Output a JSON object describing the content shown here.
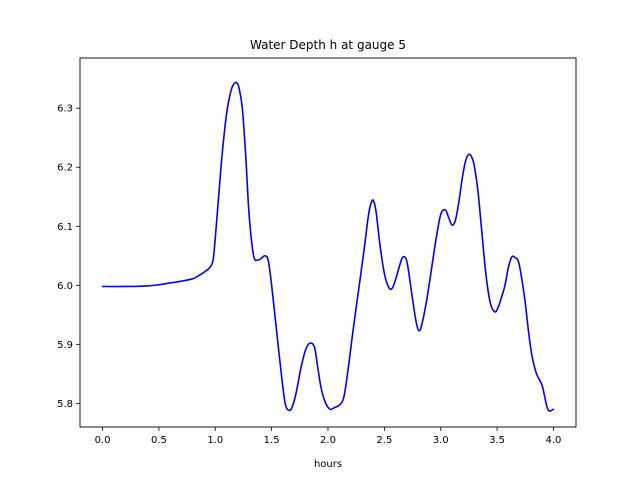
{
  "chart_data": {
    "type": "line",
    "title": "Water Depth h at gauge 5",
    "xlabel": "hours",
    "ylabel": "",
    "xlim": [
      -0.2,
      4.2
    ],
    "ylim": [
      5.76,
      6.385
    ],
    "xticks": [
      0.0,
      0.5,
      1.0,
      1.5,
      2.0,
      2.5,
      3.0,
      3.5,
      4.0
    ],
    "xtick_labels": [
      "0.0",
      "0.5",
      "1.0",
      "1.5",
      "2.0",
      "2.5",
      "3.0",
      "3.5",
      "4.0"
    ],
    "yticks": [
      5.8,
      5.9,
      6.0,
      6.1,
      6.2,
      6.3
    ],
    "ytick_labels": [
      "5.8",
      "5.9",
      "6.0",
      "6.1",
      "6.2",
      "6.3"
    ],
    "grid": false,
    "series": [
      {
        "color": "#0000ff",
        "x": [
          0.0,
          0.2,
          0.4,
          0.5,
          0.6,
          0.7,
          0.8,
          0.85,
          0.9,
          0.95,
          0.98,
          1.0,
          1.03,
          1.06,
          1.1,
          1.14,
          1.17,
          1.19,
          1.21,
          1.24,
          1.27,
          1.3,
          1.34,
          1.38,
          1.41,
          1.44,
          1.47,
          1.5,
          1.54,
          1.58,
          1.62,
          1.66,
          1.69,
          1.72,
          1.76,
          1.8,
          1.84,
          1.88,
          1.91,
          1.94,
          1.98,
          2.02,
          2.06,
          2.1,
          2.14,
          2.18,
          2.22,
          2.27,
          2.32,
          2.36,
          2.39,
          2.41,
          2.43,
          2.46,
          2.5,
          2.54,
          2.57,
          2.6,
          2.63,
          2.66,
          2.69,
          2.71,
          2.74,
          2.78,
          2.81,
          2.84,
          2.88,
          2.92,
          2.96,
          3.0,
          3.04,
          3.07,
          3.1,
          3.13,
          3.16,
          3.19,
          3.22,
          3.25,
          3.28,
          3.3,
          3.33,
          3.36,
          3.4,
          3.44,
          3.48,
          3.51,
          3.54,
          3.57,
          3.6,
          3.63,
          3.66,
          3.69,
          3.72,
          3.75,
          3.78,
          3.81,
          3.85,
          3.9,
          3.95,
          4.0
        ],
        "y": [
          5.998,
          5.998,
          5.999,
          6.001,
          6.004,
          6.007,
          6.011,
          6.016,
          6.022,
          6.03,
          6.042,
          6.08,
          6.15,
          6.22,
          6.29,
          6.33,
          6.342,
          6.343,
          6.335,
          6.3,
          6.22,
          6.12,
          6.05,
          6.043,
          6.046,
          6.05,
          6.042,
          6.0,
          5.93,
          5.86,
          5.8,
          5.788,
          5.798,
          5.82,
          5.86,
          5.89,
          5.902,
          5.895,
          5.86,
          5.825,
          5.8,
          5.79,
          5.793,
          5.797,
          5.81,
          5.86,
          5.92,
          5.99,
          6.06,
          6.12,
          6.143,
          6.14,
          6.12,
          6.07,
          6.02,
          5.996,
          5.995,
          6.01,
          6.03,
          6.047,
          6.046,
          6.03,
          5.99,
          5.94,
          5.923,
          5.94,
          5.98,
          6.03,
          6.08,
          6.12,
          6.128,
          6.115,
          6.102,
          6.11,
          6.14,
          6.18,
          6.21,
          6.222,
          6.215,
          6.2,
          6.16,
          6.1,
          6.02,
          5.97,
          5.955,
          5.963,
          5.98,
          6.0,
          6.03,
          6.048,
          6.047,
          6.04,
          6.01,
          5.97,
          5.92,
          5.88,
          5.85,
          5.83,
          5.79,
          5.79
        ]
      }
    ]
  }
}
